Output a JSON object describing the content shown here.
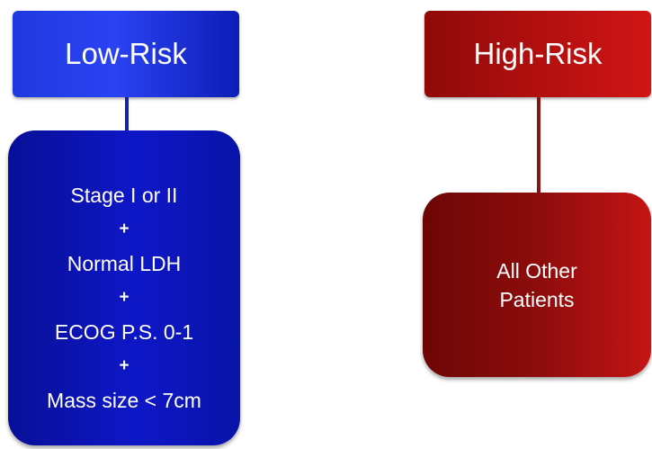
{
  "low_risk": {
    "title": "Low-Risk",
    "criteria": [
      "Stage I or II",
      "Normal LDH",
      "ECOG P.S. 0-1",
      "Mass size < 7cm"
    ],
    "joiner": "+",
    "color": "#0e17c7"
  },
  "high_risk": {
    "title": "High-Risk",
    "lines": [
      "All Other",
      "Patients"
    ],
    "color": "#b20f0f"
  }
}
